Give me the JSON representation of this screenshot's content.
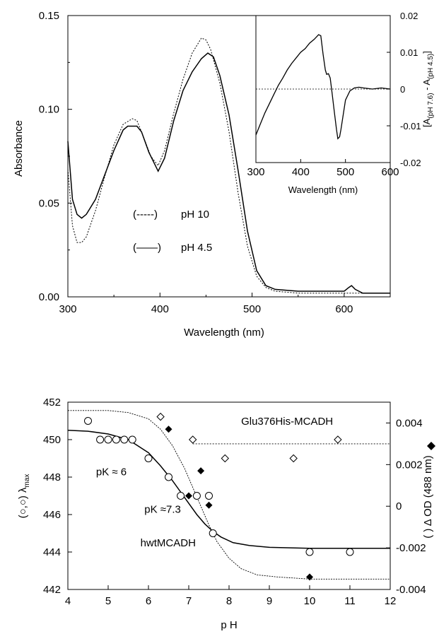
{
  "chart_data": [
    {
      "id": "absorbance",
      "type": "line",
      "xlabel": "Wavelength (nm)",
      "ylabel": "Absorbance",
      "xlim": [
        300,
        650
      ],
      "ylim": [
        0,
        0.15
      ],
      "x_ticks": [
        "300",
        "400",
        "500",
        "600"
      ],
      "y_ticks": [
        "0.00",
        "0.05",
        "0.10",
        "0.15"
      ],
      "legend": [
        {
          "marker": "(-----)",
          "label": "pH 10",
          "style": "dashed"
        },
        {
          "marker": "(——)",
          "label": "pH 4.5",
          "style": "solid"
        }
      ],
      "series": [
        {
          "style": "dashed",
          "x": [
            300,
            305,
            310,
            315,
            320,
            330,
            340,
            350,
            360,
            370,
            375,
            380,
            390,
            398,
            405,
            415,
            425,
            435,
            445,
            450,
            455,
            465,
            475,
            485,
            495,
            505,
            515,
            525,
            550,
            600,
            650
          ],
          "y": [
            0.068,
            0.038,
            0.029,
            0.029,
            0.032,
            0.046,
            0.064,
            0.081,
            0.092,
            0.095,
            0.094,
            0.088,
            0.075,
            0.07,
            0.078,
            0.098,
            0.116,
            0.13,
            0.138,
            0.137,
            0.132,
            0.114,
            0.088,
            0.055,
            0.027,
            0.011,
            0.005,
            0.003,
            0.002,
            0.002,
            0.002
          ]
        },
        {
          "style": "solid",
          "x": [
            300,
            305,
            310,
            315,
            320,
            330,
            340,
            350,
            360,
            365,
            370,
            375,
            380,
            388,
            398,
            405,
            415,
            425,
            435,
            445,
            452,
            458,
            465,
            475,
            485,
            495,
            505,
            515,
            525,
            550,
            600,
            605,
            608,
            612,
            620,
            650
          ],
          "y": [
            0.083,
            0.052,
            0.044,
            0.042,
            0.044,
            0.052,
            0.065,
            0.078,
            0.089,
            0.091,
            0.091,
            0.091,
            0.088,
            0.077,
            0.067,
            0.074,
            0.094,
            0.11,
            0.12,
            0.127,
            0.13,
            0.128,
            0.118,
            0.097,
            0.067,
            0.035,
            0.014,
            0.006,
            0.004,
            0.003,
            0.003,
            0.005,
            0.006,
            0.004,
            0.002,
            0.002
          ]
        }
      ]
    },
    {
      "id": "inset",
      "type": "line",
      "xlabel": "Wavelength (nm)",
      "ylabel_main": "[A",
      "ylabel_sub1": "(pH 7.6)",
      "ylabel_mid": " - A",
      "ylabel_sub2": "(pH 4.5)",
      "ylabel_end": "]",
      "xlim": [
        300,
        600
      ],
      "ylim": [
        -0.02,
        0.02
      ],
      "x_ticks": [
        "300",
        "400",
        "500",
        "600"
      ],
      "y_ticks": [
        "-0.02",
        "-0.01",
        "0",
        "0.01",
        "0.02"
      ],
      "baseline": 0,
      "series": [
        {
          "style": "solid",
          "x": [
            300,
            310,
            320,
            330,
            340,
            350,
            360,
            370,
            380,
            390,
            400,
            410,
            420,
            430,
            440,
            445,
            450,
            455,
            458,
            462,
            466,
            470,
            475,
            480,
            483,
            487,
            490,
            495,
            500,
            510,
            520,
            530,
            540,
            560,
            580,
            600
          ],
          "y": [
            -0.0125,
            -0.0095,
            -0.0065,
            -0.004,
            -0.0015,
            0.001,
            0.003,
            0.0052,
            0.007,
            0.0085,
            0.01,
            0.011,
            0.0125,
            0.0135,
            0.0148,
            0.0145,
            0.0095,
            0.0052,
            0.004,
            0.0042,
            0.003,
            -0.001,
            -0.006,
            -0.011,
            -0.0135,
            -0.013,
            -0.011,
            -0.007,
            -0.003,
            -0.0005,
            0.0003,
            0.0005,
            0.0003,
            0.0,
            0.0003,
            0.0
          ]
        }
      ]
    },
    {
      "id": "ph-titration",
      "type": "scatter",
      "xlabel": "p H",
      "ylabel_left_main": "λ",
      "ylabel_left_sub": "max",
      "ylabel_left_marker": "(○,○)",
      "ylabel_right": "Δ OD  (488 nm)",
      "ylabel_right_marker": "( )",
      "xlim": [
        4,
        12
      ],
      "ylim_left": [
        442,
        452
      ],
      "ylim_right": [
        -0.004,
        0.005
      ],
      "x_ticks": [
        "4",
        "5",
        "6",
        "7",
        "8",
        "9",
        "10",
        "11",
        "12"
      ],
      "y_ticks_left": [
        "442",
        "444",
        "446",
        "448",
        "450",
        "452"
      ],
      "y_ticks_right": [
        "-0.004",
        "-0.002",
        "0",
        "0.002",
        "0.004"
      ],
      "annotations": [
        {
          "text": "Glu376His-MCADH",
          "x": 8.3,
          "y": 450.8
        },
        {
          "text": "pK ≈ 6",
          "x": 4.7,
          "y": 448.1
        },
        {
          "text": "pK ≈7.3",
          "x": 5.9,
          "y": 446.1
        },
        {
          "text": "hwtMCADH",
          "x": 5.8,
          "y": 444.3
        }
      ],
      "series": [
        {
          "marker": "open-circle",
          "axis": "left",
          "x": [
            4.5,
            4.8,
            5.0,
            5.2,
            5.4,
            5.6,
            6.0,
            6.5,
            6.8,
            7.2,
            7.5,
            7.6,
            10.0,
            11.0
          ],
          "y": [
            451,
            450,
            450,
            450,
            450,
            450,
            449,
            448,
            447,
            447,
            447,
            445,
            444,
            444
          ]
        },
        {
          "marker": "filled-diamond",
          "axis": "right",
          "x": [
            6.5,
            7.0,
            7.3,
            7.5,
            10.0
          ],
          "y": [
            0.0037,
            0.0005,
            0.0017,
            5e-05,
            -0.0034
          ]
        },
        {
          "marker": "open-diamond",
          "axis": "right",
          "x": [
            6.3,
            7.1,
            7.9,
            9.6,
            10.7
          ],
          "y": [
            0.0043,
            0.0032,
            0.0023,
            0.0023,
            0.0032
          ]
        },
        {
          "style": "solid-fit",
          "axis": "left",
          "x": [
            4.0,
            4.5,
            5.0,
            5.5,
            6.0,
            6.3,
            6.6,
            6.9,
            7.2,
            7.4,
            7.6,
            7.8,
            8.1,
            8.5,
            9.0,
            10.0,
            11.0,
            12.0
          ],
          "y": [
            450.5,
            450.45,
            450.3,
            450.0,
            449.3,
            448.6,
            447.8,
            446.9,
            446.0,
            445.5,
            445.1,
            444.8,
            444.5,
            444.35,
            444.25,
            444.2,
            444.2,
            444.2
          ]
        },
        {
          "style": "dotted-fit",
          "axis": "right",
          "x": [
            4.0,
            5.0,
            5.5,
            6.0,
            6.3,
            6.6,
            6.9,
            7.1,
            7.3,
            7.5,
            7.7,
            8.0,
            8.3,
            8.7,
            9.2,
            10.0,
            11.0,
            12.0
          ],
          "y": [
            0.0046,
            0.0046,
            0.0045,
            0.0042,
            0.0037,
            0.0029,
            0.0018,
            0.0009,
            0.0,
            -0.0009,
            -0.0017,
            -0.0025,
            -0.003,
            -0.0033,
            -0.0034,
            -0.0035,
            -0.0035,
            -0.0035
          ]
        },
        {
          "style": "dotted-plateau",
          "axis": "right",
          "x": [
            7.1,
            12.0
          ],
          "y": [
            0.003,
            0.003
          ]
        }
      ]
    }
  ]
}
